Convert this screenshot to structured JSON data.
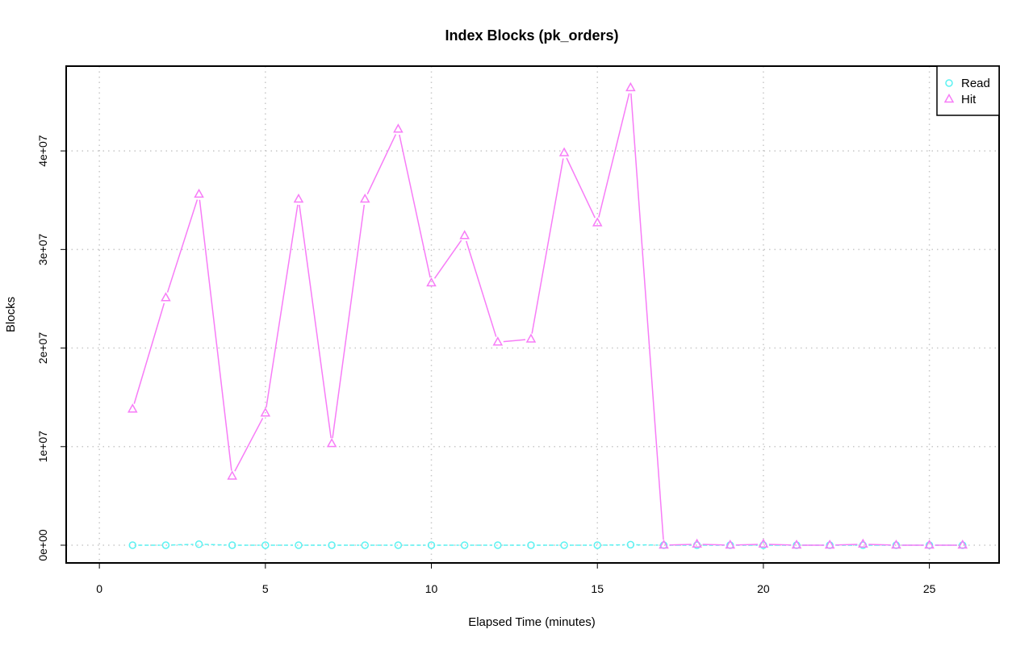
{
  "chart_data": {
    "type": "line",
    "title": "Index Blocks (pk_orders)",
    "xlabel": "Elapsed Time (minutes)",
    "ylabel": "Blocks",
    "xlim": [
      -1,
      27.1
    ],
    "ylim": [
      -1800000,
      48600000
    ],
    "x_ticks": [
      0,
      5,
      10,
      15,
      20,
      25
    ],
    "x_tick_labels": [
      "0",
      "5",
      "10",
      "15",
      "20",
      "25"
    ],
    "y_ticks": [
      0,
      10000000,
      20000000,
      30000000,
      40000000
    ],
    "y_tick_labels": [
      "0e+00",
      "1e+07",
      "2e+07",
      "3e+07",
      "4e+07"
    ],
    "grid": true,
    "legend_position": "top-right",
    "x": [
      1,
      2,
      3,
      4,
      5,
      6,
      7,
      8,
      9,
      10,
      11,
      12,
      13,
      14,
      15,
      16,
      17,
      18,
      19,
      20,
      21,
      22,
      23,
      24,
      25,
      26
    ],
    "series": [
      {
        "name": "Read",
        "color": "#5CF2F2",
        "marker": "circle",
        "line_style": "dashed",
        "values": [
          0,
          0,
          100000,
          0,
          0,
          0,
          0,
          0,
          0,
          0,
          0,
          0,
          0,
          0,
          0,
          50000,
          0,
          0,
          0,
          0,
          0,
          0,
          0,
          0,
          0,
          0
        ]
      },
      {
        "name": "Hit",
        "color": "#F77CF7",
        "marker": "triangle",
        "line_style": "solid",
        "values": [
          13800000,
          25100000,
          35600000,
          7000000,
          13400000,
          35100000,
          10300000,
          35100000,
          42200000,
          26600000,
          31400000,
          20600000,
          20900000,
          39800000,
          32700000,
          46400000,
          0,
          100000,
          0,
          100000,
          0,
          0,
          100000,
          0,
          0,
          0
        ]
      }
    ]
  }
}
